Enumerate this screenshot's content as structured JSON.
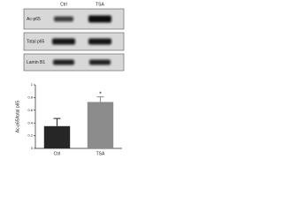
{
  "blot": {
    "columns": [
      "Ctrl",
      "TSA"
    ],
    "rows": [
      "Ac-p65",
      "Total p65",
      "Lamin B1"
    ]
  },
  "chart_data": {
    "type": "bar",
    "y_label": "Ac-p65/total p65",
    "categories": [
      "Ctrl",
      "TSA"
    ],
    "values": [
      0.35,
      0.73
    ],
    "errors": [
      0.12,
      0.08
    ],
    "colors": [
      "#262626",
      "#8c8c8c"
    ],
    "annotation": "*",
    "ylim": [
      0,
      1.0
    ],
    "yticks": [
      0,
      0.2,
      0.4,
      0.6,
      0.8,
      1.0
    ],
    "grid": false
  }
}
